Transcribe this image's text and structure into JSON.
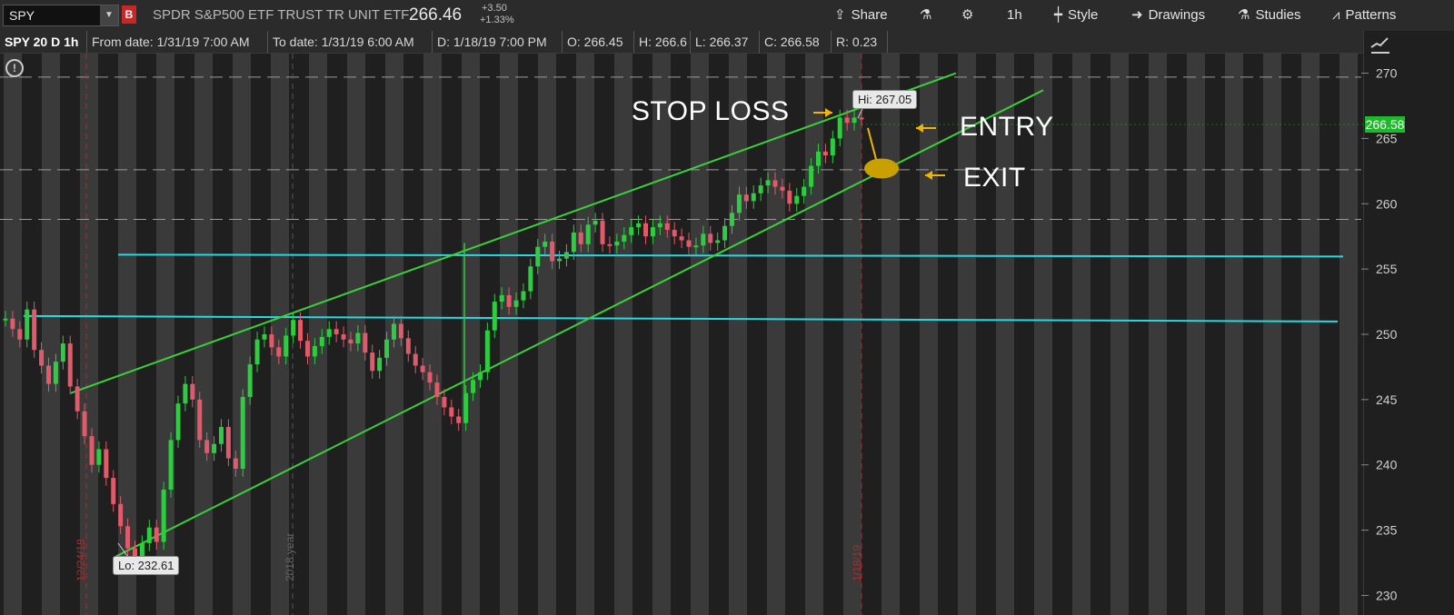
{
  "header": {
    "symbol": "SPY",
    "badge": "B",
    "description": "SPDR S&P500 ETF TRUST TR UNIT ETF",
    "last": "266.46",
    "change_abs": "+3.50",
    "change_pct": "+1.33%",
    "buttons": {
      "share": "Share",
      "interval": "1h",
      "style": "Style",
      "drawings": "Drawings",
      "studies": "Studies",
      "patterns": "Patterns"
    }
  },
  "info": {
    "symbol_period": "SPY 20 D 1h",
    "from": "From date: 1/31/19 7:00 AM",
    "to": "To date: 1/31/19 6:00 AM",
    "d": "D: 1/18/19 7:00 PM",
    "o": "O: 266.45",
    "h": "H: 266.6",
    "l": "L: 266.37",
    "c": "C: 266.58",
    "r": "R: 0.23"
  },
  "annotations": {
    "stop_loss": "STOP LOSS",
    "entry": "ENTRY",
    "exit": "EXIT",
    "hi_label": "Hi: 267.05",
    "lo_label": "Lo: 232.61",
    "current_price": "266.58",
    "date1": "12/24/18",
    "year_marker": "2018 year",
    "date2": "1/18/19"
  },
  "colors": {
    "up": "#2ecc40",
    "down": "#e05a6a",
    "trendline": "#3ad13a",
    "hline": "#28d9e0",
    "arrow": "#f0b400",
    "exit_marker": "#c8a000",
    "price_tag": "#1eb82b"
  },
  "chart_data": {
    "type": "line",
    "title": "",
    "xlabel": "",
    "ylabel": "",
    "ylim": [
      228.5,
      271.5
    ],
    "yticks": [
      230,
      235,
      240,
      245,
      250,
      255,
      260,
      265,
      270
    ],
    "grid": true,
    "dashed_levels": [
      269.7,
      262.6,
      258.8
    ],
    "series": [
      {
        "values": [
          251.2,
          250.4,
          249.6,
          251.9,
          248.8,
          247.6,
          246.2,
          247.9,
          249.3,
          246.0,
          244.1,
          242.2,
          240.0,
          241.2,
          239.0,
          237.0,
          235.3,
          233.6,
          232.8,
          234.0,
          235.2,
          234.1,
          238.1,
          241.9,
          244.7,
          246.2,
          245.0,
          241.9,
          240.9,
          241.6,
          242.9,
          240.5,
          239.7,
          245.2,
          247.7,
          249.6,
          250.0,
          249.0,
          248.3,
          249.9,
          251.1,
          249.5,
          248.3,
          249.1,
          249.8,
          250.4,
          250.0,
          249.6,
          249.3,
          250.1,
          248.6,
          247.2,
          248.2,
          249.6,
          250.8,
          249.7,
          248.5,
          247.6,
          247.1,
          246.3,
          245.2,
          244.4,
          243.7,
          243.2,
          245.5,
          246.5,
          247.1,
          250.3,
          252.5,
          253.0,
          252.1,
          252.6,
          253.3,
          255.2,
          256.7,
          257.1,
          255.6,
          255.8,
          256.3,
          257.8,
          256.9,
          258.4,
          258.7,
          256.9,
          256.8,
          257.1,
          257.6,
          258.2,
          258.5,
          257.5,
          258.2,
          258.5,
          258.0,
          257.5,
          257.2,
          256.7,
          256.8,
          257.7,
          257.0,
          257.2,
          258.3,
          259.3,
          260.7,
          260.2,
          260.8,
          261.4,
          261.8,
          261.3,
          261.0,
          260.0,
          260.6,
          261.3,
          262.9,
          264.0,
          263.7,
          265.0,
          266.6,
          266.2,
          266.6,
          266.58
        ]
      }
    ],
    "trendlines": [
      {
        "points": [
          [
            245.5,
            0.05
          ],
          [
            270.0,
            0.7
          ]
        ]
      },
      {
        "points": [
          [
            233.0,
            0.08
          ],
          [
            268.7,
            0.7
          ]
        ]
      }
    ],
    "horizontal_lines": [
      {
        "y": 256.1
      },
      {
        "y": 251.4
      }
    ],
    "high": 267.05,
    "low": 232.61
  }
}
